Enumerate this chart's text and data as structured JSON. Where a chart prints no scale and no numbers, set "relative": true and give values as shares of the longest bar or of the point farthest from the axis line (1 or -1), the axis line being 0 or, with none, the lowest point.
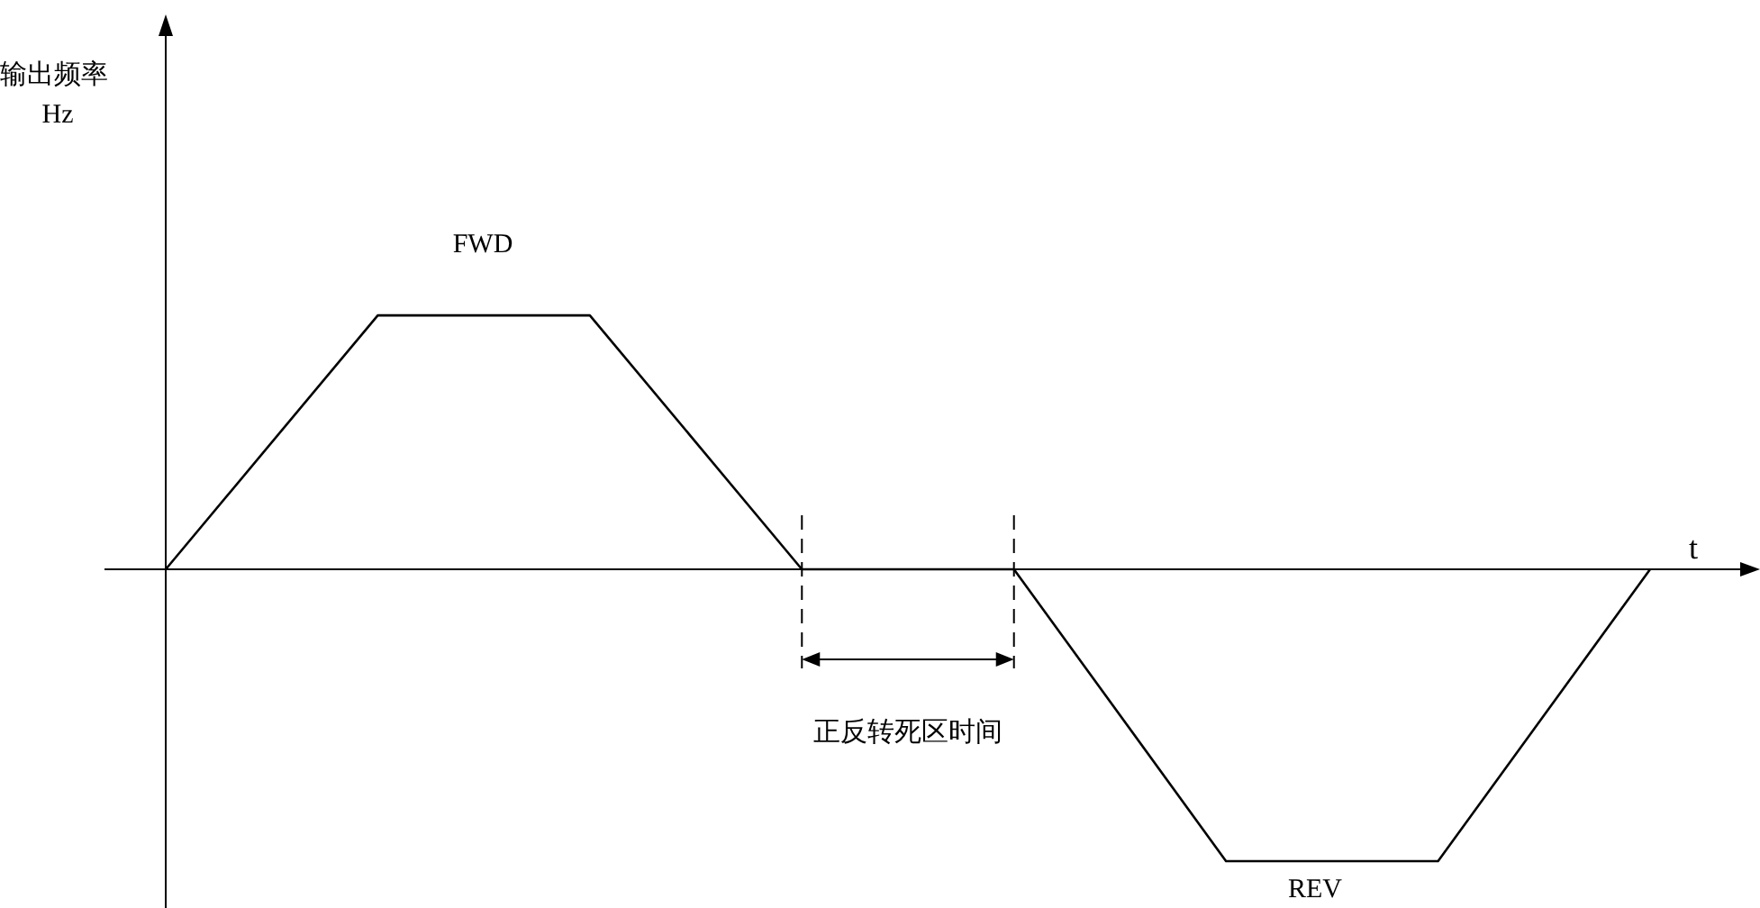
{
  "chart_data": {
    "type": "line",
    "relative": true,
    "xlabel": "t",
    "categories": [
      null,
      null,
      null,
      null,
      null,
      null,
      null,
      null
    ],
    "series": [
      {
        "color": "#000000",
        "values": [
          0,
          0.87,
          0.87,
          0,
          0,
          -1,
          -1,
          0
        ]
      }
    ],
    "annotations": [
      "输出频率 Hz",
      "FWD",
      "正反转死区时间",
      "REV"
    ],
    "marker": "none",
    "line_style": "solid"
  }
}
